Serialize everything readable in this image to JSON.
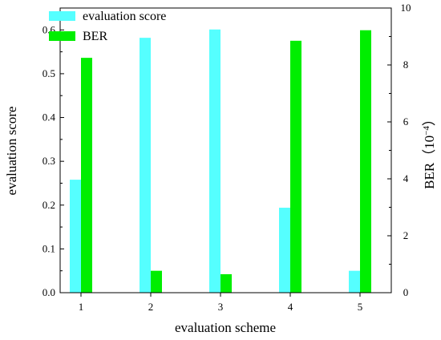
{
  "chart_data": {
    "type": "bar",
    "xlabel": "evaluation scheme",
    "categories": [
      "1",
      "2",
      "3",
      "4",
      "5"
    ],
    "axes": {
      "left": {
        "label": "evaluation score",
        "ylim": [
          0,
          0.65
        ],
        "ticks": [
          "0.0",
          "0.1",
          "0.2",
          "0.3",
          "0.4",
          "0.5",
          "0.6"
        ]
      },
      "right": {
        "label": "BER（10",
        "label_superscript": "−4",
        "label_suffix": "）",
        "ylim": [
          0,
          10
        ],
        "ticks": [
          "0",
          "2",
          "4",
          "6",
          "8",
          "10"
        ]
      }
    },
    "legend_position": "top-left",
    "series": [
      {
        "name": "evaluation score",
        "axis": "left",
        "color": "#55FFFF",
        "values": [
          0.258,
          0.582,
          0.601,
          0.194,
          0.05
        ]
      },
      {
        "name": "BER",
        "axis": "right",
        "color": "#00EE00",
        "values": [
          8.25,
          0.77,
          0.65,
          8.85,
          9.22
        ]
      }
    ],
    "grid": false
  }
}
